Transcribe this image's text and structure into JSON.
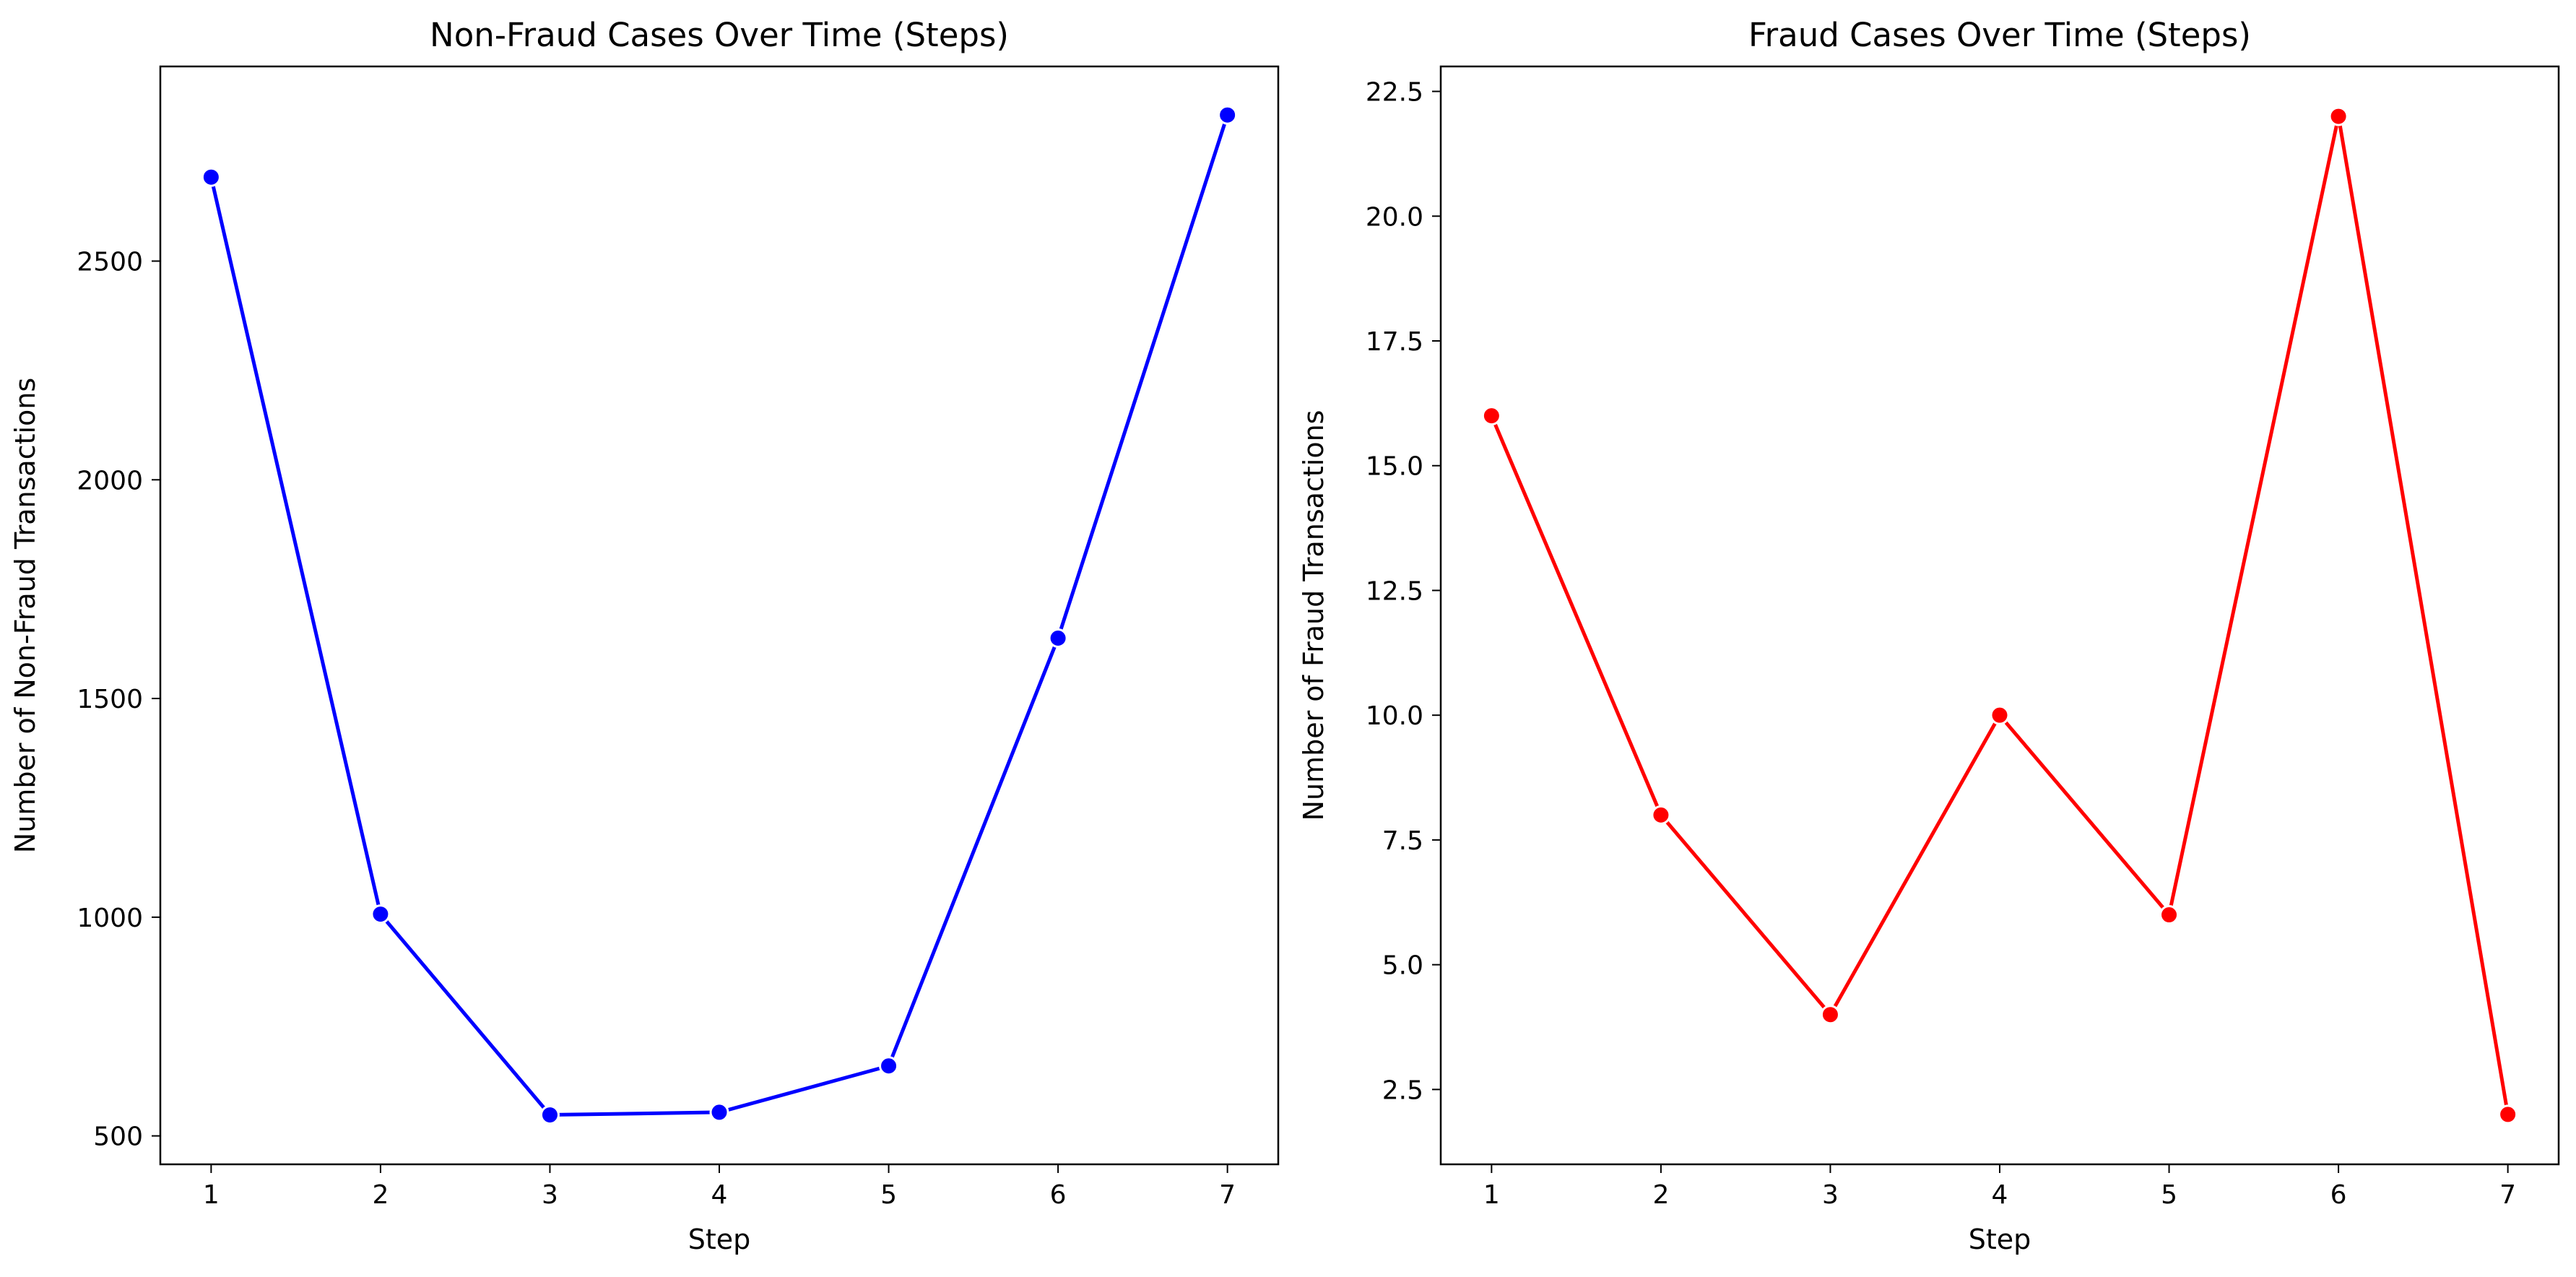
{
  "chart_data": [
    {
      "type": "line",
      "title": "Non-Fraud Cases Over Time (Steps)",
      "xlabel": "Step",
      "ylabel": "Number of Non-Fraud Transactions",
      "x": [
        1,
        2,
        3,
        4,
        5,
        6,
        7
      ],
      "series": [
        {
          "values": [
            2692,
            1007,
            548,
            554,
            660,
            1638,
            2834
          ],
          "color": "#0000ff"
        }
      ],
      "xlim": [
        0.7,
        7.3
      ],
      "ylim": [
        435,
        2945
      ],
      "xticks": [
        1,
        2,
        3,
        4,
        5,
        6,
        7
      ],
      "xtick_labels": [
        "1",
        "2",
        "3",
        "4",
        "5",
        "6",
        "7"
      ],
      "yticks": [
        500,
        1000,
        1500,
        2000,
        2500
      ],
      "ytick_labels": [
        "500",
        "1000",
        "1500",
        "2000",
        "2500"
      ],
      "grid": false,
      "marker": "circle"
    },
    {
      "type": "line",
      "title": "Fraud Cases Over Time (Steps)",
      "xlabel": "Step",
      "ylabel": "Number of Fraud Transactions",
      "x": [
        1,
        2,
        3,
        4,
        5,
        6,
        7
      ],
      "series": [
        {
          "values": [
            16,
            8,
            4,
            10,
            6,
            22,
            2
          ],
          "color": "#ff0000"
        }
      ],
      "xlim": [
        0.7,
        7.3
      ],
      "ylim": [
        1.0,
        23.0
      ],
      "xticks": [
        1,
        2,
        3,
        4,
        5,
        6,
        7
      ],
      "xtick_labels": [
        "1",
        "2",
        "3",
        "4",
        "5",
        "6",
        "7"
      ],
      "yticks": [
        2.5,
        5.0,
        7.5,
        10.0,
        12.5,
        15.0,
        17.5,
        20.0,
        22.5
      ],
      "ytick_labels": [
        "2.5",
        "5.0",
        "7.5",
        "10.0",
        "12.5",
        "15.0",
        "17.5",
        "20.0",
        "22.5"
      ],
      "grid": false,
      "marker": "circle"
    }
  ]
}
